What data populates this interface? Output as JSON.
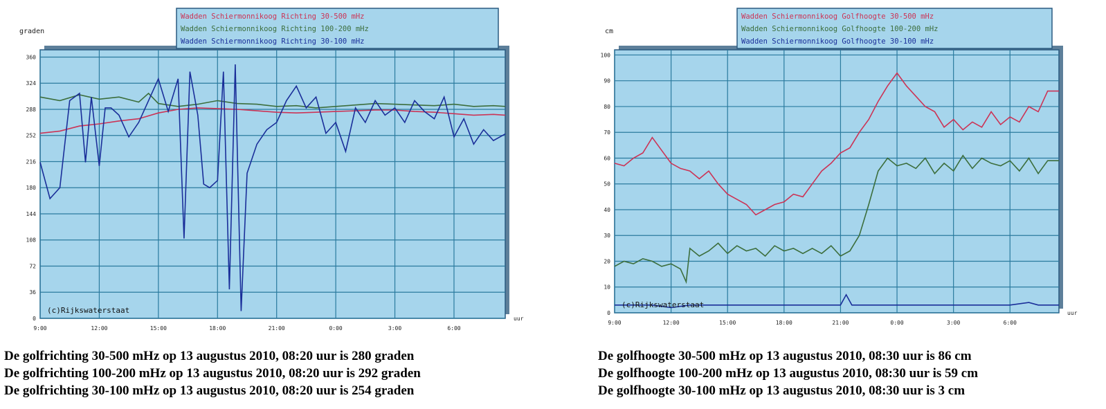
{
  "chart_data": [
    {
      "type": "line",
      "ylabel": "graden",
      "xunit": "uur",
      "watermark": "(c)Rijkswaterstaat",
      "x_ticks": [
        "9:00",
        "12:00",
        "15:00",
        "18:00",
        "21:00",
        "0:00",
        "3:00",
        "6:00"
      ],
      "y_ticks": [
        0,
        36,
        72,
        108,
        144,
        180,
        216,
        252,
        288,
        324,
        360
      ],
      "ylim": [
        0,
        370
      ],
      "xlim": [
        0,
        23.6
      ],
      "grid": true,
      "legend_position": "top",
      "series": [
        {
          "name": "Wadden Schiermonnikoog Richting 30-500 mHz",
          "color": "#cc3355",
          "x": [
            0,
            1,
            2,
            3,
            4,
            5,
            6,
            7,
            8,
            9,
            10,
            11,
            12,
            13,
            14,
            15,
            16,
            17,
            18,
            19,
            20,
            21,
            22,
            23,
            23.6
          ],
          "y": [
            255,
            258,
            265,
            268,
            272,
            275,
            283,
            288,
            290,
            289,
            288,
            286,
            284,
            283,
            284,
            285,
            286,
            287,
            287,
            285,
            284,
            282,
            280,
            281,
            280
          ]
        },
        {
          "name": "Wadden Schiermonnikoog Richting 100-200 mHz",
          "color": "#3c6e3c",
          "x": [
            0,
            1,
            2,
            3,
            4,
            5,
            5.5,
            6,
            7,
            8,
            9,
            10,
            11,
            12,
            13,
            14,
            15,
            16,
            17,
            18,
            19,
            20,
            21,
            22,
            23,
            23.6
          ],
          "y": [
            305,
            300,
            308,
            302,
            305,
            298,
            310,
            296,
            292,
            295,
            300,
            296,
            295,
            292,
            293,
            290,
            292,
            294,
            296,
            295,
            294,
            293,
            295,
            292,
            293,
            292
          ]
        },
        {
          "name": "Wadden Schiermonnikoog Richting 30-100 mHz",
          "color": "#1a2e99",
          "x": [
            0,
            0.5,
            1,
            1.5,
            2,
            2.3,
            2.6,
            3,
            3.3,
            3.6,
            4,
            4.5,
            5,
            5.5,
            6,
            6.5,
            7,
            7.3,
            7.6,
            8,
            8.3,
            8.6,
            9,
            9.3,
            9.6,
            9.9,
            10.2,
            10.5,
            11,
            11.5,
            12,
            12.5,
            13,
            13.5,
            14,
            14.5,
            15,
            15.5,
            16,
            16.5,
            17,
            17.5,
            18,
            18.5,
            19,
            19.5,
            20,
            20.5,
            21,
            21.5,
            22,
            22.5,
            23,
            23.6
          ],
          "y": [
            215,
            165,
            180,
            300,
            310,
            215,
            305,
            210,
            290,
            290,
            280,
            250,
            270,
            300,
            330,
            285,
            330,
            110,
            340,
            280,
            185,
            180,
            190,
            340,
            40,
            350,
            10,
            200,
            240,
            260,
            270,
            300,
            320,
            290,
            305,
            255,
            270,
            230,
            290,
            270,
            300,
            280,
            290,
            270,
            300,
            285,
            275,
            305,
            250,
            275,
            240,
            260,
            245,
            254
          ]
        }
      ]
    },
    {
      "type": "line",
      "ylabel": "cm",
      "xunit": "uur",
      "watermark": "(c)Rijkswaterstaat",
      "x_ticks": [
        "9:00",
        "12:00",
        "15:00",
        "18:00",
        "21:00",
        "0:00",
        "3:00",
        "6:00"
      ],
      "y_ticks": [
        0,
        10,
        20,
        30,
        40,
        50,
        60,
        70,
        80,
        90,
        100
      ],
      "ylim": [
        0,
        102
      ],
      "xlim": [
        0,
        23.6
      ],
      "grid": true,
      "legend_position": "top",
      "series": [
        {
          "name": "Wadden Schiermonnikoog Golfhoogte 30-500 mHz",
          "color": "#cc3355",
          "x": [
            0,
            0.5,
            1,
            1.5,
            2,
            2.5,
            3,
            3.5,
            4,
            4.5,
            5,
            5.5,
            6,
            6.5,
            7,
            7.5,
            8,
            8.5,
            9,
            9.5,
            10,
            10.5,
            11,
            11.5,
            12,
            12.5,
            13,
            13.5,
            14,
            14.5,
            15,
            15.5,
            16,
            16.5,
            17,
            17.5,
            18,
            18.5,
            19,
            19.5,
            20,
            20.5,
            21,
            21.5,
            22,
            22.5,
            23,
            23.6
          ],
          "y": [
            58,
            57,
            60,
            62,
            68,
            63,
            58,
            56,
            55,
            52,
            55,
            50,
            46,
            44,
            42,
            38,
            40,
            42,
            43,
            46,
            45,
            50,
            55,
            58,
            62,
            64,
            70,
            75,
            82,
            88,
            93,
            88,
            84,
            80,
            78,
            72,
            75,
            71,
            74,
            72,
            78,
            73,
            76,
            74,
            80,
            78,
            86,
            86
          ]
        },
        {
          "name": "Wadden Schiermonnikoog Golfhoogte 100-200 mHz",
          "color": "#3c6e3c",
          "x": [
            0,
            0.5,
            1,
            1.5,
            2,
            2.5,
            3,
            3.5,
            3.8,
            4,
            4.5,
            5,
            5.5,
            6,
            6.5,
            7,
            7.5,
            8,
            8.5,
            9,
            9.5,
            10,
            10.5,
            11,
            11.5,
            12,
            12.5,
            13,
            13.5,
            14,
            14.5,
            15,
            15.5,
            16,
            16.5,
            17,
            17.5,
            18,
            18.5,
            19,
            19.5,
            20,
            20.5,
            21,
            21.5,
            22,
            22.5,
            23,
            23.6
          ],
          "y": [
            18,
            20,
            19,
            21,
            20,
            18,
            19,
            17,
            12,
            25,
            22,
            24,
            27,
            23,
            26,
            24,
            25,
            22,
            26,
            24,
            25,
            23,
            25,
            23,
            26,
            22,
            24,
            30,
            42,
            55,
            60,
            57,
            58,
            56,
            60,
            54,
            58,
            55,
            61,
            56,
            60,
            58,
            57,
            59,
            55,
            60,
            54,
            59,
            59
          ]
        },
        {
          "name": "Wadden Schiermonnikoog Golfhoogte 30-100 mHz",
          "color": "#1a2e99",
          "x": [
            0,
            1,
            2,
            3,
            4,
            5,
            6,
            7,
            8,
            9,
            10,
            11,
            12,
            12.3,
            12.6,
            13,
            14,
            15,
            16,
            17,
            18,
            19,
            20,
            21,
            22,
            22.5,
            23,
            23.6
          ],
          "y": [
            3,
            3,
            3,
            2,
            3,
            3,
            3,
            3,
            3,
            3,
            3,
            3,
            3,
            7,
            3,
            3,
            3,
            3,
            3,
            3,
            3,
            3,
            3,
            3,
            4,
            3,
            3,
            3
          ]
        }
      ]
    }
  ],
  "captions": {
    "left": [
      "De golfrichting 30-500 mHz op 13 augustus 2010, 08:20 uur is 280 graden",
      "De golfrichting 100-200 mHz op 13 augustus 2010, 08:20 uur is 292 graden",
      "De golfrichting 30-100 mHz op 13 augustus 2010, 08:20 uur is 254 graden"
    ],
    "right": [
      "De golfhoogte 30-500 mHz op 13 augustus 2010, 08:30 uur is 86 cm",
      "De golfhoogte 100-200 mHz op 13 augustus 2010, 08:30 uur is 59 cm",
      "De golfhoogte 30-100 mHz op 13 augustus 2010, 08:30 uur is 3 cm"
    ]
  }
}
